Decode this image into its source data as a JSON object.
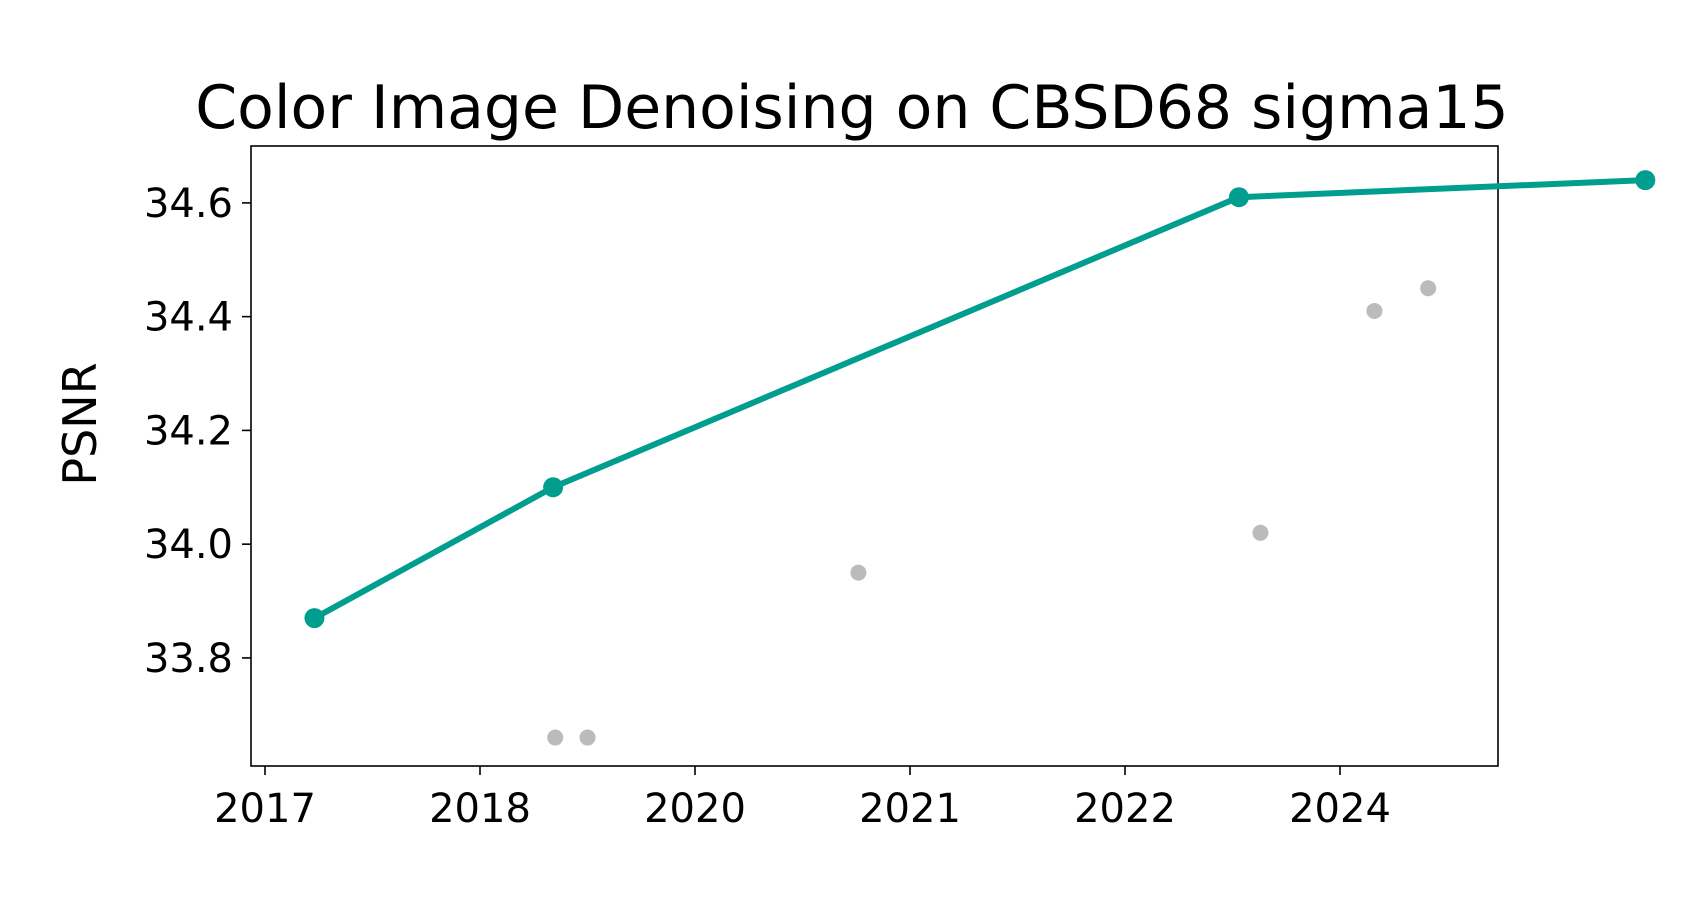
{
  "chart_data": {
    "type": "scatter",
    "title": "Color Image Denoising on CBSD68 sigma15",
    "xlabel": "",
    "ylabel": "PSNR",
    "x_tick_labels": [
      "2017",
      "2018",
      "2020",
      "2021",
      "2022",
      "2024"
    ],
    "y_ticks": [
      33.8,
      34.0,
      34.2,
      34.4,
      34.6
    ],
    "y_tick_labels": [
      "33.8",
      "34.0",
      "34.2",
      "34.4",
      "34.6"
    ],
    "ylim": [
      33.61,
      34.7
    ],
    "grid": false,
    "legend": "none",
    "series": [
      {
        "kind": "line",
        "color": "#009E8F",
        "x": [
          0.23,
          1.34,
          4.53,
          6.42
        ],
        "y": [
          33.87,
          34.1,
          34.61,
          34.64
        ]
      },
      {
        "kind": "scatter",
        "color": "#BBBBBB",
        "x": [
          1.35,
          1.5,
          2.76,
          4.63,
          5.16,
          5.41
        ],
        "y": [
          33.66,
          33.66,
          33.95,
          34.02,
          34.41,
          34.45
        ]
      }
    ]
  }
}
